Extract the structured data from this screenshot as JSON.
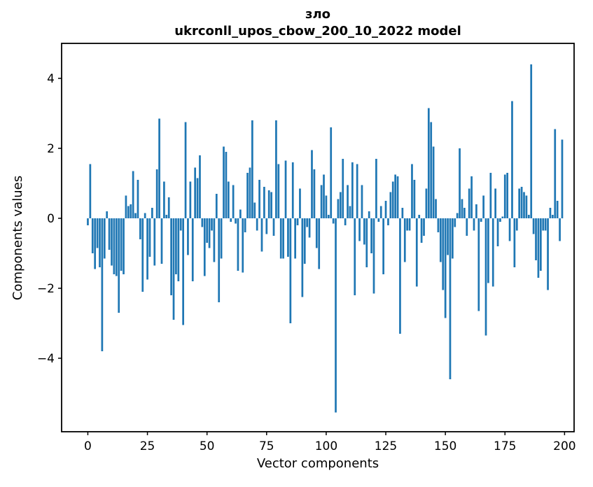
{
  "figure": {
    "title_line1": "зло",
    "title_line2": "ukrconll_upos_cbow_200_10_2022 model"
  },
  "colors": {
    "bar": "#1f77b4",
    "spine": "#000000",
    "text": "#000000",
    "background": "#ffffff"
  },
  "chart_data": {
    "type": "bar",
    "title": "зло\nukrconll_upos_cbow_200_10_2022 model",
    "xlabel": "Vector components",
    "ylabel": "Components values",
    "legend": null,
    "grid": false,
    "bar_width": 0.8,
    "xlim": [
      -11,
      204
    ],
    "ylim": [
      -6.1,
      5.0
    ],
    "xticks": [
      0,
      25,
      50,
      75,
      100,
      125,
      150,
      175,
      200
    ],
    "yticks": [
      4,
      2,
      0,
      -2,
      -4
    ],
    "ytick_labels": [
      "4",
      "2",
      "0",
      "−2",
      "−4"
    ],
    "x_start": 0,
    "values": [
      -0.2,
      1.55,
      -1.0,
      -1.45,
      -0.85,
      -1.4,
      -3.8,
      -1.15,
      0.2,
      -0.9,
      -1.35,
      -1.6,
      -1.65,
      -2.7,
      -1.5,
      -1.6,
      0.65,
      0.35,
      0.4,
      1.35,
      0.15,
      1.1,
      -0.6,
      -2.1,
      0.15,
      -1.75,
      -1.1,
      0.3,
      -1.35,
      1.4,
      2.85,
      -1.3,
      1.05,
      0.1,
      0.6,
      -2.2,
      -2.9,
      -1.6,
      -1.8,
      -0.35,
      -3.05,
      2.75,
      -1.05,
      1.05,
      -1.8,
      1.45,
      1.15,
      1.8,
      -0.25,
      -1.65,
      -0.7,
      -0.85,
      -0.35,
      -1.25,
      0.7,
      -2.4,
      -1.15,
      2.05,
      1.9,
      1.05,
      -0.1,
      0.95,
      -0.15,
      -1.5,
      0.25,
      -1.55,
      -0.4,
      1.3,
      1.45,
      2.8,
      0.45,
      -0.35,
      1.1,
      -0.95,
      0.9,
      -0.45,
      0.8,
      0.75,
      -0.5,
      2.8,
      1.55,
      -1.15,
      -1.15,
      1.65,
      -1.1,
      -3.0,
      1.6,
      -1.15,
      -0.2,
      0.85,
      -2.25,
      -1.3,
      -0.25,
      -0.55,
      1.95,
      1.4,
      -0.85,
      -1.45,
      0.95,
      1.25,
      0.65,
      0.1,
      2.6,
      -0.15,
      -5.55,
      0.55,
      0.75,
      1.7,
      -0.2,
      0.95,
      0.35,
      1.6,
      -2.2,
      1.55,
      -0.65,
      0.95,
      -0.75,
      -1.4,
      0.2,
      -1.0,
      -2.15,
      1.7,
      -0.1,
      0.35,
      -1.6,
      0.5,
      -0.2,
      0.75,
      1.05,
      1.25,
      1.2,
      -3.3,
      0.3,
      -1.25,
      -0.35,
      -0.35,
      1.55,
      1.1,
      -1.95,
      0.1,
      -0.7,
      -0.5,
      0.85,
      3.15,
      2.75,
      2.05,
      0.55,
      -0.4,
      -1.25,
      -2.05,
      -2.85,
      -1.05,
      -4.6,
      -1.15,
      -0.25,
      0.15,
      2.0,
      0.55,
      0.3,
      -0.5,
      0.85,
      1.2,
      -0.35,
      0.4,
      -2.65,
      -0.1,
      0.65,
      -3.35,
      -1.85,
      1.3,
      -1.95,
      0.85,
      -0.8,
      -0.1,
      0.05,
      1.25,
      1.3,
      -0.65,
      3.35,
      -1.4,
      -0.35,
      0.85,
      0.9,
      0.75,
      0.65,
      0.1,
      4.4,
      -0.45,
      -1.2,
      -1.7,
      -1.5,
      -0.35,
      -0.35,
      -2.05,
      0.3,
      0.1,
      2.55,
      0.5,
      -0.65,
      2.25
    ]
  }
}
